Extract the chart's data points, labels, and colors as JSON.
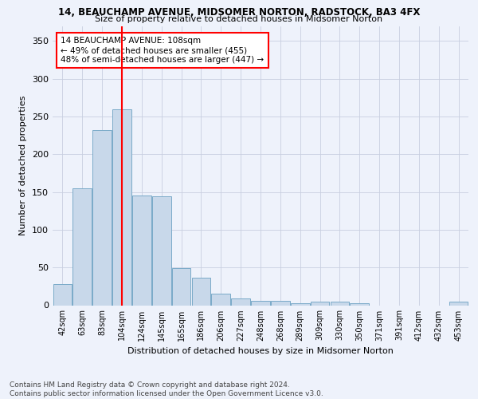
{
  "title": "14, BEAUCHAMP AVENUE, MIDSOMER NORTON, RADSTOCK, BA3 4FX",
  "subtitle": "Size of property relative to detached houses in Midsomer Norton",
  "xlabel": "Distribution of detached houses by size in Midsomer Norton",
  "ylabel": "Number of detached properties",
  "footer_line1": "Contains HM Land Registry data © Crown copyright and database right 2024.",
  "footer_line2": "Contains public sector information licensed under the Open Government Licence v3.0.",
  "annotation_line1": "14 BEAUCHAMP AVENUE: 108sqm",
  "annotation_line2": "← 49% of detached houses are smaller (455)",
  "annotation_line3": "48% of semi-detached houses are larger (447) →",
  "bar_color": "#c8d8ea",
  "bar_edge_color": "#7aaac8",
  "vline_color": "red",
  "vline_x": 3,
  "background_color": "#eef2fb",
  "categories": [
    "42sqm",
    "63sqm",
    "83sqm",
    "104sqm",
    "124sqm",
    "145sqm",
    "165sqm",
    "186sqm",
    "206sqm",
    "227sqm",
    "248sqm",
    "268sqm",
    "289sqm",
    "309sqm",
    "330sqm",
    "350sqm",
    "371sqm",
    "391sqm",
    "412sqm",
    "432sqm",
    "453sqm"
  ],
  "values": [
    28,
    155,
    232,
    260,
    145,
    144,
    49,
    36,
    15,
    9,
    6,
    6,
    3,
    5,
    5,
    3,
    0,
    0,
    0,
    0,
    5
  ],
  "ylim": [
    0,
    370
  ],
  "yticks": [
    0,
    50,
    100,
    150,
    200,
    250,
    300,
    350
  ],
  "grid_color": "#c8cfe0",
  "title_fontsize": 8.5,
  "subtitle_fontsize": 8,
  "ylabel_fontsize": 8,
  "xlabel_fontsize": 8,
  "tick_fontsize": 7,
  "footer_fontsize": 6.5,
  "ann_fontsize": 7.5
}
